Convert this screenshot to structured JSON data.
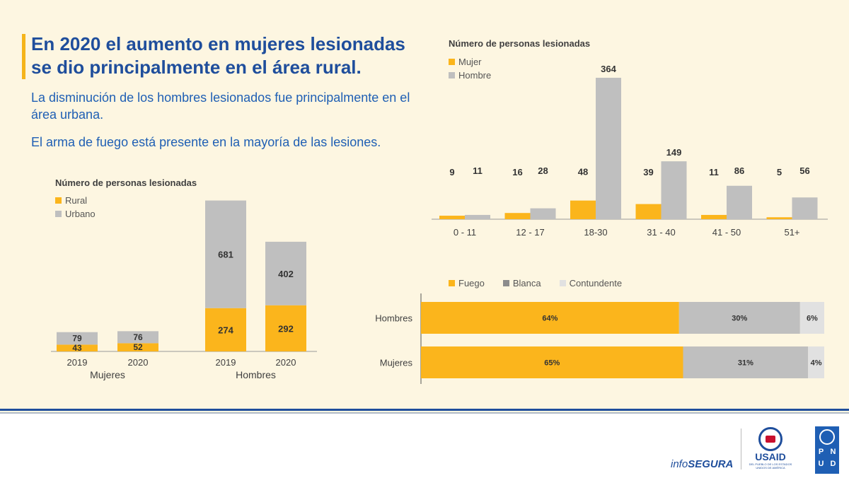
{
  "headline": "En 2020 el aumento en mujeres lesionadas se dio principalmente en el área rural.",
  "paragraph1": "La disminución de los hombres lesionados fue principalmente en el área urbana.",
  "paragraph2": "El arma de fuego está presente en la mayoría de las lesiones.",
  "colors": {
    "yellow": "#fbb51c",
    "gray": "#bfbfbf",
    "lightgray": "#e1e1e1",
    "label": "#333333",
    "title": "#1f4e9c"
  },
  "chart_data": [
    {
      "id": "area-chart",
      "type": "bar",
      "stacked": true,
      "title": "Número de personas lesionadas",
      "legend": [
        "Rural",
        "Urbano"
      ],
      "categories": [
        "2019",
        "2020",
        "2019",
        "2020"
      ],
      "groups": [
        {
          "label": "Mujeres",
          "categories": [
            "2019",
            "2020"
          ]
        },
        {
          "label": "Hombres",
          "categories": [
            "2019",
            "2020"
          ]
        }
      ],
      "series": [
        {
          "name": "Rural",
          "values": [
            43,
            52,
            274,
            292
          ]
        },
        {
          "name": "Urbano",
          "values": [
            79,
            76,
            681,
            402
          ]
        }
      ],
      "ylim": [
        0,
        1000
      ]
    },
    {
      "id": "age-chart",
      "type": "bar",
      "title": "Número de personas lesionadas",
      "legend": [
        "Mujer",
        "Hombre"
      ],
      "categories": [
        "0 - 11",
        "12 - 17",
        "18-30",
        "31 - 40",
        "41 - 50",
        "51+"
      ],
      "series": [
        {
          "name": "Mujer",
          "values": [
            9,
            16,
            48,
            39,
            11,
            5
          ]
        },
        {
          "name": "Hombre",
          "values": [
            11,
            28,
            364,
            149,
            86,
            56
          ]
        }
      ],
      "ylim": [
        0,
        400
      ]
    },
    {
      "id": "weapon-chart",
      "type": "bar",
      "orientation": "horizontal",
      "stacked": true,
      "legend": [
        "Fuego",
        "Blanca",
        "Contundente"
      ],
      "categories": [
        "Hombres",
        "Mujeres"
      ],
      "series": [
        {
          "name": "Fuego",
          "values": [
            64,
            65
          ],
          "labels": [
            "64%",
            "65%"
          ]
        },
        {
          "name": "Blanca",
          "values": [
            30,
            31
          ],
          "labels": [
            "30%",
            "31%"
          ]
        },
        {
          "name": "Contundente",
          "values": [
            6,
            4
          ],
          "labels": [
            "6%",
            "4%"
          ]
        }
      ]
    }
  ],
  "footer": {
    "infosegura_prefix": "info",
    "infosegura_suffix": "SEGURA",
    "usaid": "USAID",
    "usaid_tagline": "DEL PUEBLO DE LOS ESTADOS UNIDOS DE AMÉRICA",
    "undp_letters": [
      "P",
      "N",
      "U",
      "D"
    ]
  }
}
